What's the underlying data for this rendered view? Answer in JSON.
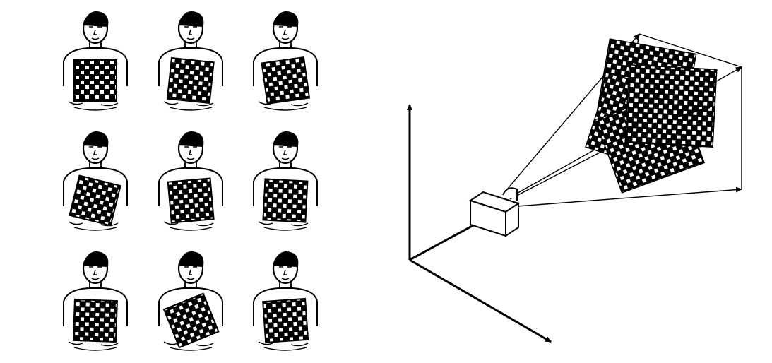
{
  "figure": {
    "left_panel": {
      "rows": 3,
      "cols": 3,
      "board_tilts_deg": [
        0,
        6,
        -8,
        14,
        -5,
        3,
        2,
        -22,
        -4
      ]
    },
    "right_panel": {
      "camera_icon": "camera-icon",
      "frustum_rays": 4,
      "board_rotations_deg": [
        10,
        -8,
        18,
        -20,
        3
      ]
    },
    "colors": {
      "ink": "#000000",
      "paper": "#ffffff"
    }
  }
}
